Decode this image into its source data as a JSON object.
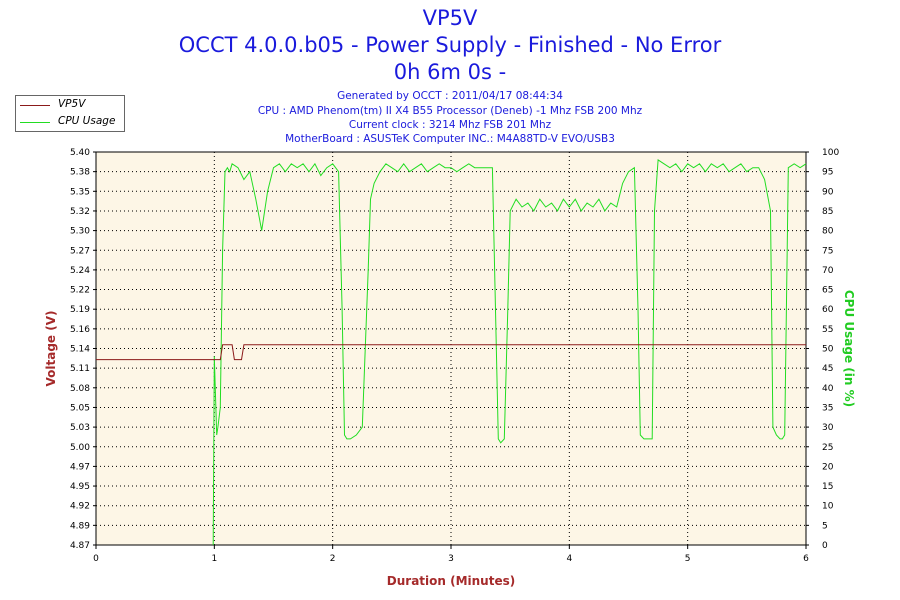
{
  "header": {
    "title_line1": "VP5V",
    "title_line2": "OCCT 4.0.0.b05 - Power Supply - Finished - No Error",
    "title_line3": "0h 6m 0s -",
    "generated": "Generated by OCCT : 2011/04/17 08:44:34",
    "cpu": "CPU : AMD Phenom(tm) II X4 B55 Processor (Deneb) -1 Mhz FSB 200 Mhz",
    "clock": "Current clock : 3214 Mhz FSB 201 Mhz",
    "motherboard": "MotherBoard : ASUSTeK Computer INC.: M4A88TD-V EVO/USB3"
  },
  "colors": {
    "voltage": "#8b1a1a",
    "cpu": "#22dd22",
    "plot_bg": "#fdf6e6",
    "title": "#1a1adc",
    "axis_label_left": "#a52a2a",
    "axis_label_right": "#22cc22",
    "xlabel": "#a52a2a"
  },
  "chart_data": {
    "type": "line",
    "xlabel": "Duration (Minutes)",
    "ylabel": "Voltage (V)",
    "y2label": "CPU Usage (in %)",
    "xlim": [
      0,
      6
    ],
    "ylim": [
      4.87,
      5.4
    ],
    "y2lim": [
      0,
      100
    ],
    "x_ticks": [
      "0",
      "1",
      "2",
      "3",
      "4",
      "5",
      "6"
    ],
    "y_ticks": [
      "4.87",
      "4.89",
      "4.92",
      "4.95",
      "4.97",
      "5.00",
      "5.03",
      "5.05",
      "5.08",
      "5.11",
      "5.14",
      "5.16",
      "5.19",
      "5.22",
      "5.24",
      "5.27",
      "5.30",
      "5.32",
      "5.35",
      "5.38",
      "5.40"
    ],
    "y2_ticks": [
      "0",
      "5",
      "10",
      "15",
      "20",
      "25",
      "30",
      "35",
      "40",
      "45",
      "50",
      "55",
      "60",
      "65",
      "70",
      "75",
      "80",
      "85",
      "90",
      "95",
      "100"
    ],
    "grid": true,
    "legend_position": "top-left",
    "series": [
      {
        "name": "VP5V",
        "axis": "left",
        "x": [
          0,
          1.05,
          1.07,
          1.15,
          1.17,
          1.23,
          1.25,
          6
        ],
        "y": [
          5.12,
          5.12,
          5.14,
          5.14,
          5.12,
          5.12,
          5.14,
          5.14
        ]
      },
      {
        "name": "CPU Usage",
        "axis": "right",
        "x": [
          0.99,
          1.0,
          1.02,
          1.03,
          1.05,
          1.07,
          1.09,
          1.11,
          1.13,
          1.15,
          1.2,
          1.25,
          1.3,
          1.35,
          1.4,
          1.45,
          1.5,
          1.55,
          1.6,
          1.65,
          1.7,
          1.75,
          1.8,
          1.85,
          1.9,
          1.95,
          2.0,
          2.05,
          2.08,
          2.1,
          2.12,
          2.15,
          2.2,
          2.25,
          2.3,
          2.32,
          2.35,
          2.4,
          2.45,
          2.5,
          2.55,
          2.6,
          2.65,
          2.7,
          2.75,
          2.8,
          2.85,
          2.9,
          2.95,
          3.0,
          3.05,
          3.1,
          3.15,
          3.2,
          3.25,
          3.3,
          3.35,
          3.4,
          3.42,
          3.45,
          3.48,
          3.5,
          3.55,
          3.6,
          3.65,
          3.7,
          3.75,
          3.8,
          3.85,
          3.9,
          3.95,
          4.0,
          4.05,
          4.1,
          4.15,
          4.2,
          4.25,
          4.3,
          4.35,
          4.4,
          4.45,
          4.5,
          4.55,
          4.58,
          4.6,
          4.63,
          4.65,
          4.68,
          4.7,
          4.72,
          4.75,
          4.8,
          4.85,
          4.9,
          4.95,
          5.0,
          5.05,
          5.1,
          5.15,
          5.2,
          5.25,
          5.3,
          5.35,
          5.4,
          5.45,
          5.5,
          5.55,
          5.6,
          5.65,
          5.7,
          5.72,
          5.75,
          5.78,
          5.8,
          5.82,
          5.85,
          5.9,
          5.95,
          6.0
        ],
        "y": [
          0,
          48,
          28,
          30,
          35,
          75,
          95,
          96,
          95,
          97,
          96,
          93,
          95,
          88,
          80,
          90,
          96,
          97,
          95,
          97,
          96,
          97,
          95,
          97,
          94,
          96,
          97,
          95,
          60,
          28,
          27,
          27,
          28,
          30,
          70,
          88,
          92,
          95,
          97,
          96,
          95,
          97,
          95,
          96,
          97,
          95,
          96,
          97,
          96,
          96,
          95,
          96,
          97,
          96,
          96,
          96,
          96,
          27,
          26,
          27,
          60,
          85,
          88,
          86,
          87,
          85,
          88,
          86,
          87,
          85,
          88,
          86,
          88,
          85,
          87,
          86,
          88,
          85,
          87,
          86,
          92,
          95,
          96,
          60,
          28,
          27,
          27,
          27,
          27,
          85,
          98,
          97,
          96,
          97,
          95,
          97,
          96,
          97,
          95,
          97,
          96,
          97,
          95,
          96,
          97,
          95,
          96,
          96,
          93,
          85,
          30,
          28,
          27,
          27,
          28,
          96,
          97,
          96,
          97
        ]
      }
    ]
  }
}
